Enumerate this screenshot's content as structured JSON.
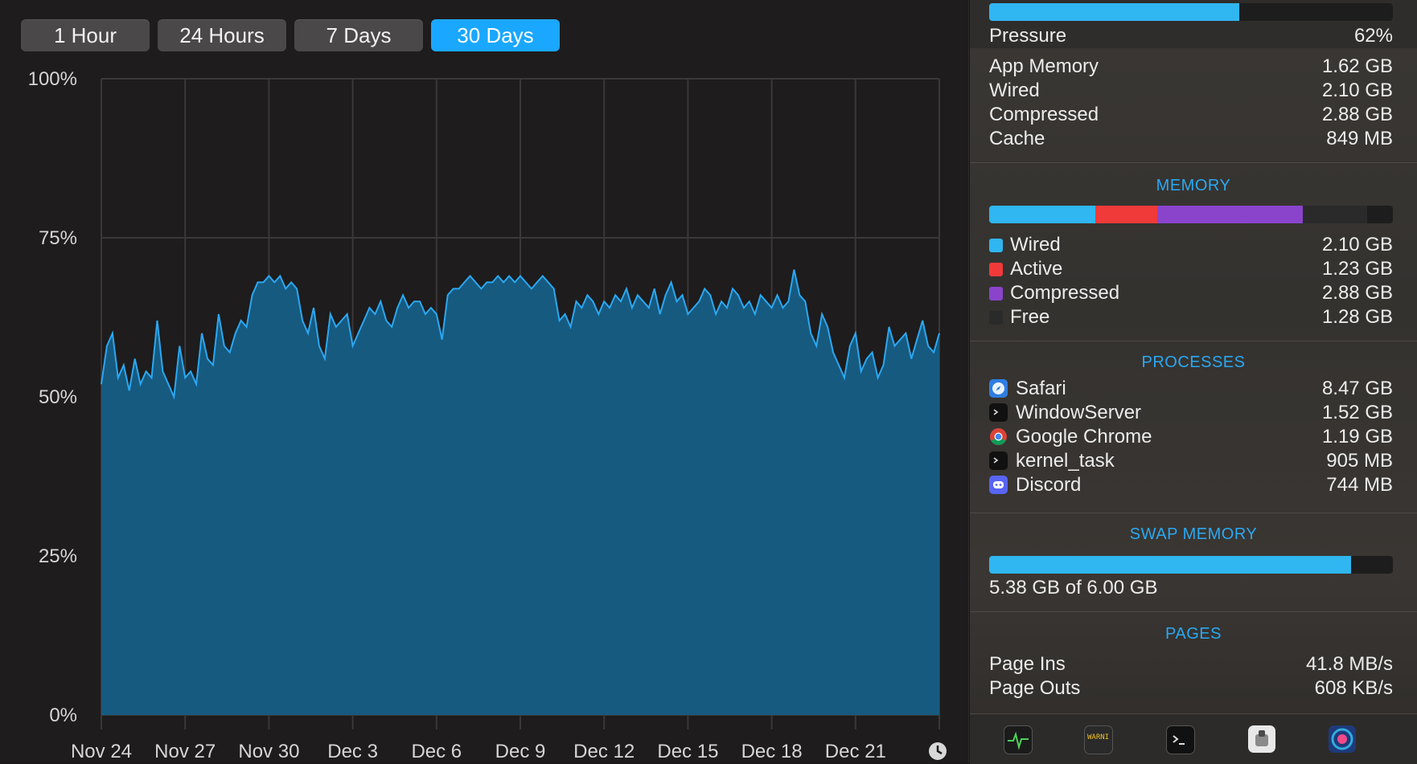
{
  "range_buttons": [
    {
      "label": "1 Hour",
      "active": false
    },
    {
      "label": "24 Hours",
      "active": false
    },
    {
      "label": "7 Days",
      "active": false
    },
    {
      "label": "30 Days",
      "active": true
    }
  ],
  "chart_data": {
    "type": "area",
    "ylim": [
      0,
      100
    ],
    "y_ticks": [
      "100%",
      "75%",
      "50%",
      "25%",
      "0%"
    ],
    "x_ticks": [
      "Nov 24",
      "Nov 27",
      "Nov 30",
      "Dec 3",
      "Dec 6",
      "Dec 9",
      "Dec 12",
      "Dec 15",
      "Dec 18",
      "Dec 21"
    ],
    "fill_color": "#175a80",
    "line_color": "#2aa8f2",
    "grid": true,
    "series": [
      {
        "values": [
          52,
          58,
          60,
          53,
          55,
          51,
          56,
          52,
          54,
          53,
          62,
          54,
          52,
          50,
          58,
          53,
          54,
          52,
          60,
          56,
          55,
          63,
          58,
          57,
          60,
          62,
          61,
          66,
          68,
          68,
          69,
          68,
          69,
          67,
          68,
          67,
          62,
          60,
          64,
          58,
          56,
          63,
          61,
          62,
          63,
          58,
          60,
          62,
          64,
          63,
          65,
          62,
          61,
          64,
          66,
          64,
          65,
          65,
          63,
          64,
          63,
          59,
          66,
          67,
          67,
          68,
          69,
          68,
          67,
          68,
          68,
          69,
          68,
          69,
          68,
          69,
          68,
          67,
          68,
          69,
          68,
          67,
          62,
          63,
          61,
          65,
          64,
          66,
          65,
          63,
          65,
          64,
          66,
          65,
          67,
          64,
          66,
          65,
          64,
          67,
          63,
          66,
          68,
          65,
          66,
          63,
          64,
          65,
          67,
          66,
          63,
          65,
          64,
          67,
          66,
          64,
          65,
          63,
          66,
          65,
          64,
          66,
          64,
          65,
          70,
          66,
          65,
          60,
          58,
          63,
          61,
          57,
          55,
          53,
          58,
          60,
          54,
          56,
          57,
          53,
          55,
          61,
          58,
          59,
          60,
          56,
          59,
          62,
          58,
          57,
          60
        ]
      }
    ]
  },
  "side": {
    "pressure": {
      "label": "Pressure",
      "value": "62%",
      "fraction": 0.62
    },
    "summary": [
      {
        "label": "App Memory",
        "value": "1.62 GB"
      },
      {
        "label": "Wired",
        "value": "2.10 GB"
      },
      {
        "label": "Compressed",
        "value": "2.88 GB"
      },
      {
        "label": "Cache",
        "value": "849 MB"
      }
    ],
    "memory": {
      "title": "MEMORY",
      "segments": [
        {
          "name": "Wired",
          "value": "2.10 GB",
          "color": "#30b6f0",
          "fraction": 0.2625
        },
        {
          "name": "Active",
          "value": "1.23 GB",
          "color": "#f03a3a",
          "fraction": 0.154
        },
        {
          "name": "Compressed",
          "value": "2.88 GB",
          "color": "#8a44cc",
          "fraction": 0.36
        },
        {
          "name": "Free",
          "value": "1.28 GB",
          "color": "#2a2a2a",
          "fraction": 0.16
        }
      ]
    },
    "processes": {
      "title": "PROCESSES",
      "items": [
        {
          "name": "Safari",
          "value": "8.47 GB",
          "icon": "safari-icon"
        },
        {
          "name": "WindowServer",
          "value": "1.52 GB",
          "icon": "terminal-icon"
        },
        {
          "name": "Google Chrome",
          "value": "1.19 GB",
          "icon": "chrome-icon"
        },
        {
          "name": "kernel_task",
          "value": "905 MB",
          "icon": "terminal-icon"
        },
        {
          "name": "Discord",
          "value": "744 MB",
          "icon": "discord-icon"
        }
      ]
    },
    "swap": {
      "title": "SWAP MEMORY",
      "text": "5.38 GB of 6.00 GB",
      "fraction": 0.897
    },
    "pages": {
      "title": "PAGES",
      "items": [
        {
          "label": "Page Ins",
          "value": "41.8 MB/s"
        },
        {
          "label": "Page Outs",
          "value": "608 KB/s"
        }
      ]
    },
    "dock": [
      {
        "icon": "activity-monitor-icon"
      },
      {
        "icon": "console-icon",
        "text": "WARNI"
      },
      {
        "icon": "terminal-icon"
      },
      {
        "icon": "disk-utility-icon"
      },
      {
        "icon": "istat-icon"
      }
    ]
  }
}
